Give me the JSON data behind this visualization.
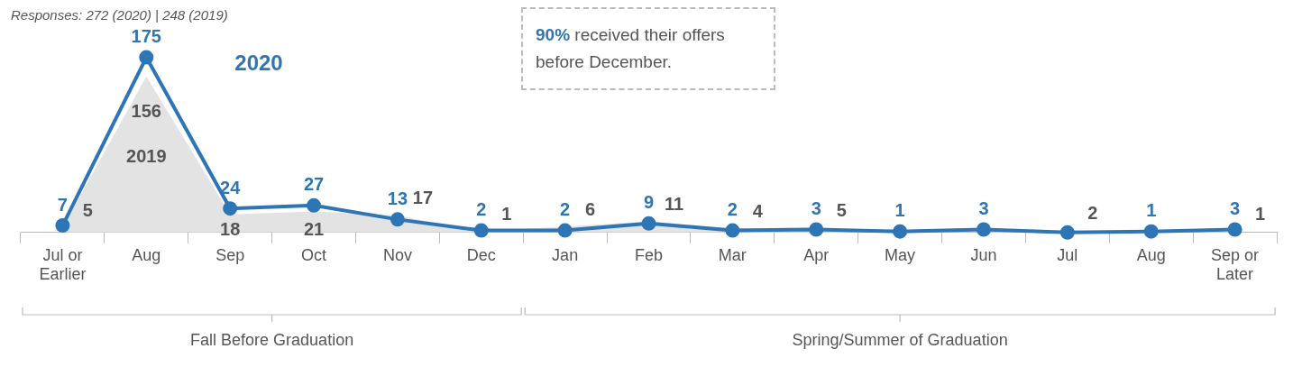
{
  "chart_data": {
    "type": "line",
    "subtitle": "Responses: 272 (2020) | 248 (2019)",
    "categories": [
      "Jul or Earlier",
      "Aug",
      "Sep",
      "Oct",
      "Nov",
      "Dec",
      "Jan",
      "Feb",
      "Mar",
      "Apr",
      "May",
      "Jun",
      "Jul",
      "Aug",
      "Sep or Later"
    ],
    "series": [
      {
        "name": "2019",
        "type": "area",
        "color": "#e3e3e3",
        "values": [
          5,
          156,
          18,
          21,
          17,
          1,
          6,
          11,
          4,
          5,
          0,
          0,
          2,
          0,
          1
        ],
        "value_labels": [
          "5",
          "156",
          "18",
          "21",
          "17",
          "1",
          "6",
          "11",
          "4",
          "5",
          null,
          null,
          "2",
          null,
          "1"
        ]
      },
      {
        "name": "2020",
        "type": "line",
        "color": "#2e75b6",
        "marker": "circle",
        "values": [
          7,
          175,
          24,
          27,
          13,
          2,
          2,
          9,
          2,
          3,
          1,
          3,
          0,
          1,
          3
        ],
        "value_labels": [
          "7",
          "175",
          "24",
          "27",
          "13",
          "2",
          "2",
          "9",
          "2",
          "3",
          "1",
          "3",
          null,
          "1",
          "3"
        ]
      }
    ],
    "tick_labels": "x",
    "grid": false,
    "legend": false,
    "annotations": [
      "90% received their offers before December.",
      "Fall Before Graduation",
      "Spring/Summer of Graduation"
    ]
  }
}
